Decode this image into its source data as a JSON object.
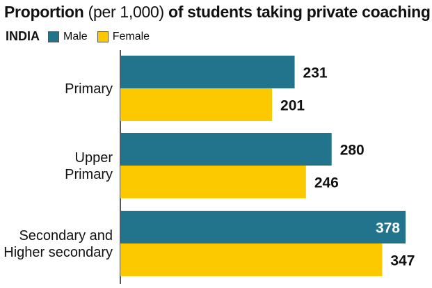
{
  "chart_data": {
    "type": "bar",
    "orientation": "horizontal",
    "title_bold_1": "Proportion",
    "title_normal": "(per 1,000)",
    "title_bold_2": "of students taking private coaching",
    "region_label": "INDIA",
    "categories": [
      [
        "Primary"
      ],
      [
        "Upper",
        "Primary"
      ],
      [
        "Secondary and",
        "Higher secondary"
      ]
    ],
    "series": [
      {
        "name": "Male",
        "color": "#22738c",
        "values": [
          231,
          280,
          378
        ]
      },
      {
        "name": "Female",
        "color": "#fcc900",
        "values": [
          201,
          246,
          347
        ]
      }
    ],
    "xlim": [
      0,
      410
    ],
    "legend_position": "top-left",
    "grid": false
  }
}
